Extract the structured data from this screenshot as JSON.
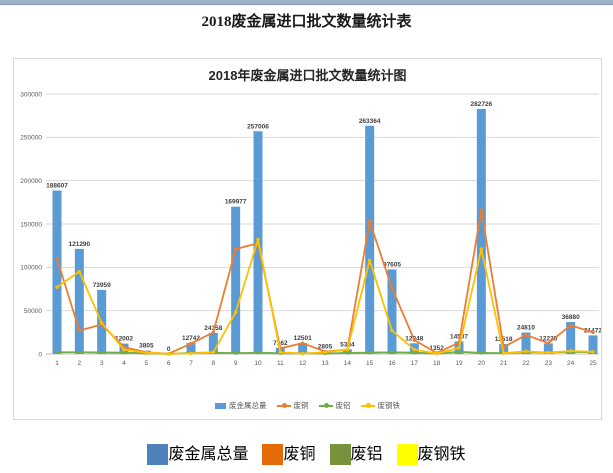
{
  "page": {
    "title": "2018废金属进口批文数量统计表"
  },
  "chart_data": {
    "type": "bar",
    "combo": "bar series with overlaid line series",
    "title": "2018年废金属进口批文数量统计图",
    "xlabel": "",
    "ylabel": "",
    "ylim": [
      0,
      300000
    ],
    "ytick_step": 50000,
    "grid": true,
    "legend_position": "bottom",
    "categories": [
      1,
      2,
      3,
      4,
      5,
      6,
      7,
      8,
      9,
      10,
      11,
      12,
      13,
      14,
      15,
      16,
      17,
      18,
      19,
      20,
      21,
      22,
      23,
      24,
      25
    ],
    "series": [
      {
        "name": "废金属总量",
        "type": "bar",
        "color": "#5b9bd5",
        "data_labels": true,
        "values": [
          188607,
          121290,
          73959,
          12002,
          3805,
          0,
          12742,
          24358,
          169977,
          257006,
          7162,
          12501,
          2805,
          5384,
          263364,
          97605,
          12348,
          1352,
          14507,
          282726,
          11518,
          24810,
          12225,
          36880,
          21472
        ]
      },
      {
        "name": "废铜",
        "type": "line",
        "color": "#ed7d31",
        "estimated": true,
        "values": [
          110000,
          27000,
          34000,
          8000,
          2000,
          300,
          12000,
          25000,
          121000,
          128000,
          6500,
          12500,
          2800,
          5000,
          153000,
          76000,
          16000,
          1200,
          13000,
          166000,
          8000,
          22000,
          12500,
          33000,
          25000
        ]
      },
      {
        "name": "废铝",
        "type": "line",
        "color": "#70ad47",
        "estimated": true,
        "values": [
          2000,
          2000,
          1800,
          1500,
          800,
          100,
          1200,
          1500,
          1000,
          1500,
          800,
          800,
          600,
          1200,
          1500,
          2000,
          1500,
          400,
          2500,
          1200,
          1000,
          2000,
          1800,
          2500,
          2000
        ]
      },
      {
        "name": "废钢铁",
        "type": "line",
        "color": "#ffc000",
        "estimated": true,
        "values": [
          77000,
          95000,
          36000,
          5000,
          1500,
          200,
          700,
          2000,
          48000,
          132000,
          2000,
          500,
          2000,
          5000,
          108000,
          27000,
          5000,
          500,
          7000,
          121000,
          1000,
          3000,
          1500,
          3500,
          2500
        ]
      }
    ]
  },
  "bottom_legend": {
    "items": [
      {
        "label": "废金属总量",
        "color": "#4f81bd"
      },
      {
        "label": "废铜",
        "color": "#e36c09"
      },
      {
        "label": "废铝",
        "color": "#76923c"
      },
      {
        "label": "废钢铁",
        "color": "#ffff00"
      }
    ]
  }
}
